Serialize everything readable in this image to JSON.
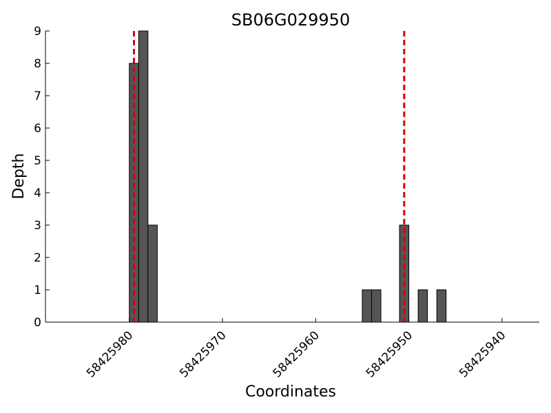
{
  "chart_data": {
    "type": "bar",
    "title": "SB06G029950",
    "xlabel": "Coordinates",
    "ylabel": "Depth",
    "x": [
      58425980,
      58425979,
      58425978,
      58425955,
      58425954,
      58425951,
      58425949,
      58425947
    ],
    "values": [
      8,
      9,
      3,
      1,
      1,
      3,
      1,
      1
    ],
    "color": "#555555",
    "vlines": [
      58425979.5,
      58425950.5
    ],
    "vline_color": "#dd0000",
    "xlim": [
      58425989,
      58425936
    ],
    "xticks": [
      58425980,
      58425970,
      58425960,
      58425950,
      58425940
    ],
    "ylim": [
      0,
      9
    ],
    "yticks": [
      0,
      1,
      2,
      3,
      4,
      5,
      6,
      7,
      8,
      9
    ]
  }
}
